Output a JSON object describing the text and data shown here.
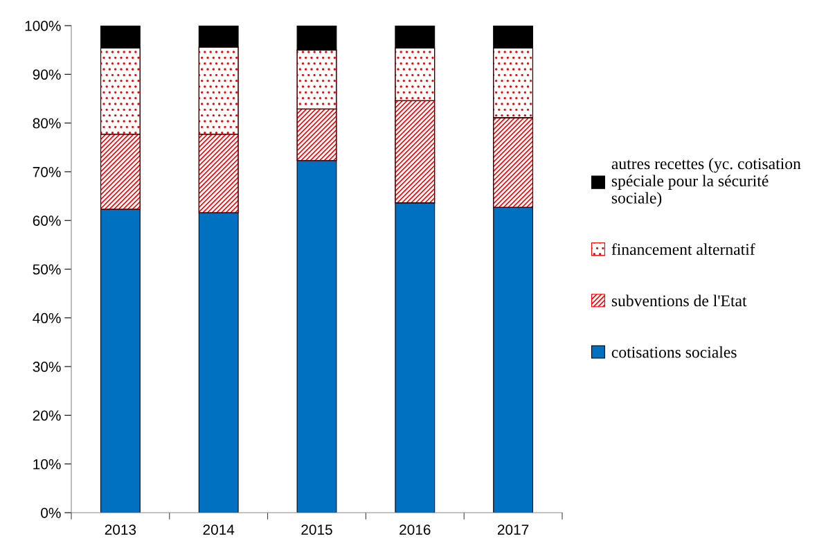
{
  "chart_data": {
    "type": "bar",
    "stacked": true,
    "categories": [
      "2013",
      "2014",
      "2015",
      "2016",
      "2017"
    ],
    "series": [
      {
        "name": "cotisations sociales",
        "color": "#0070c0",
        "values": [
          62.3,
          61.6,
          72.3,
          63.6,
          62.7
        ]
      },
      {
        "name": "subventions de l'Etat",
        "color": "#ff0000",
        "values": [
          15.4,
          16.1,
          10.6,
          21.0,
          18.4
        ]
      },
      {
        "name": "financement alternatif",
        "color": "#ff0000",
        "values": [
          17.7,
          17.9,
          12.1,
          10.8,
          14.3
        ]
      },
      {
        "name": "autres recettes (yc. cotisation\nspéciale pour la sécurité\nsociale)",
        "color": "#000000",
        "values": [
          4.6,
          4.4,
          5.0,
          4.6,
          4.6
        ]
      }
    ],
    "ylim": [
      0,
      100
    ],
    "yticks": [
      {
        "value": 0,
        "label": "0%"
      },
      {
        "value": 10,
        "label": "10%"
      },
      {
        "value": 20,
        "label": "20%"
      },
      {
        "value": 30,
        "label": "30%"
      },
      {
        "value": 40,
        "label": "40%"
      },
      {
        "value": 50,
        "label": "50%"
      },
      {
        "value": 60,
        "label": "60%"
      },
      {
        "value": 70,
        "label": "70%"
      },
      {
        "value": 80,
        "label": "80%"
      },
      {
        "value": 90,
        "label": "90%"
      },
      {
        "value": 100,
        "label": "100%"
      }
    ],
    "grid": false,
    "legend": "right"
  }
}
